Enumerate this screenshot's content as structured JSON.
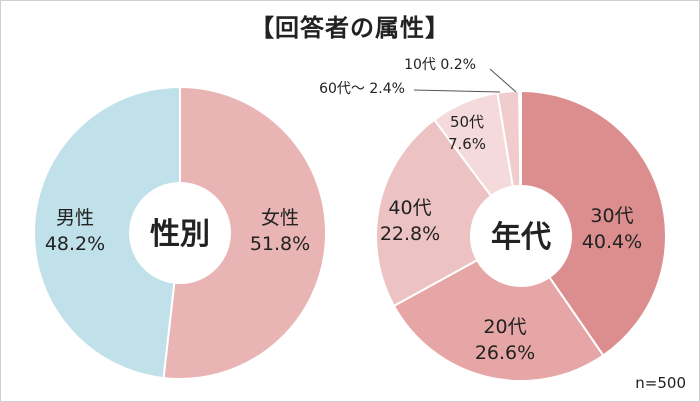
{
  "title": "【回答者の属性】",
  "sample_size": "n=500",
  "chart_data": [
    {
      "type": "pie",
      "center_label": "性別",
      "slices": [
        {
          "name": "女性",
          "value": 51.8,
          "label": "51.8%",
          "color": "#e8b4b4"
        },
        {
          "name": "男性",
          "value": 48.2,
          "label": "48.2%",
          "color": "#c0e0ea"
        }
      ]
    },
    {
      "type": "pie",
      "center_label": "年代",
      "slices": [
        {
          "name": "30代",
          "value": 40.4,
          "label": "40.4%",
          "color": "#dc8e8e"
        },
        {
          "name": "20代",
          "value": 26.6,
          "label": "26.6%",
          "color": "#e6a6a6"
        },
        {
          "name": "40代",
          "value": 22.8,
          "label": "22.8%",
          "color": "#edc2c2"
        },
        {
          "name": "50代",
          "value": 7.6,
          "label": "7.6%",
          "color": "#f4dada"
        },
        {
          "name": "60代～",
          "value": 2.4,
          "label": "2.4%",
          "color": "#f0cccc"
        },
        {
          "name": "10代",
          "value": 0.2,
          "label": "0.2%",
          "color": "#f8e4e4"
        }
      ]
    }
  ]
}
